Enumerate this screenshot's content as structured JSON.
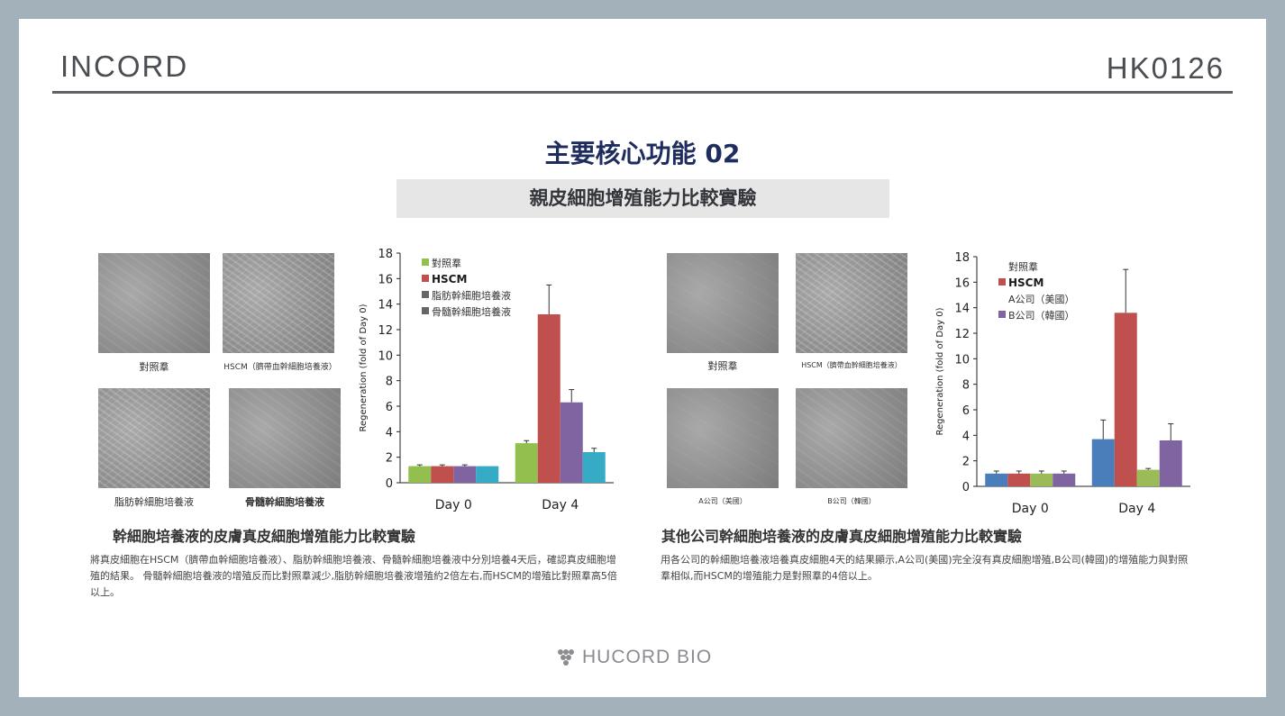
{
  "header": {
    "brand_left": "INCORD",
    "brand_right": "HK0126"
  },
  "title": "主要核心功能 02",
  "subtitle": "親皮細胞增殖能力比較實驗",
  "left_panel": {
    "captions": [
      "對照羣",
      "HSCM（臍帶血幹細胞培養液）",
      "脂肪幹細胞培養液",
      "骨髓幹細胞培養液"
    ],
    "section_title": "幹細胞培養液的皮膚真皮細胞增殖能力比較實驗",
    "body": "將真皮細胞在HSCM（臍帶血幹細胞培養液）、脂肪幹細胞培養液、骨髓幹細胞培養液中分別培養4天后，確認真皮細胞增殖的結果。 骨髓幹細胞培養液的增殖反而比對照羣減少,脂肪幹細胞培養液增殖約2倍左右,而HSCM的增殖比對照羣高5倍以上。"
  },
  "right_panel": {
    "captions": [
      "對照羣",
      "HSCM（臍帶血幹細胞培養液）",
      "A公司（美國）",
      "B公司（韓國）"
    ],
    "section_title": "其他公司幹細胞培養液的皮膚真皮細胞增殖能力比較實驗",
    "body": "用各公司的幹細胞培養液培養真皮細胞4天的結果顯示,A公司(美國)完全沒有真皮細胞增殖,B公司(韓國)的增殖能力與對照羣相似,而HSCM的增殖能力是對照羣的4倍以上。"
  },
  "footer": {
    "logo_text": "HUCORD BIO"
  },
  "chart_data": [
    {
      "type": "bar",
      "categories": [
        "Day 0",
        "Day 4"
      ],
      "ylabel": "Regeneration (fold of Day 0)",
      "xlabel": "",
      "ylim": [
        0,
        18
      ],
      "yticks": [
        0,
        2,
        4,
        6,
        8,
        10,
        12,
        14,
        16,
        18
      ],
      "legend_position": "top-left",
      "series": [
        {
          "name": "對照羣",
          "color": "#92bf4e",
          "values": [
            1.3,
            3.1
          ],
          "errors": [
            0.1,
            0.2
          ]
        },
        {
          "name": "HSCM",
          "color": "#c0504d",
          "values": [
            1.3,
            13.2
          ],
          "errors": [
            0.1,
            2.3
          ]
        },
        {
          "name": "脂肪幹細胞培養液",
          "color": "#8064a2",
          "values": [
            1.3,
            6.3
          ],
          "errors": [
            0.1,
            1.0
          ]
        },
        {
          "name": "骨髓幹細胞培養液",
          "color": "#36abc6",
          "values": [
            1.3,
            2.4
          ],
          "errors": [
            0.0,
            0.3
          ]
        }
      ],
      "legend_colors": [
        "#92bf4e",
        "#c0504d",
        "#666666",
        "#666666"
      ]
    },
    {
      "type": "bar",
      "categories": [
        "Day 0",
        "Day 4"
      ],
      "ylabel": "Regeneration (fold of Day 0)",
      "xlabel": "",
      "ylim": [
        0,
        18
      ],
      "yticks": [
        0,
        2,
        4,
        6,
        8,
        10,
        12,
        14,
        16,
        18
      ],
      "legend_position": "top-left",
      "series": [
        {
          "name": "對照羣",
          "color": "#4a7ebb",
          "values": [
            1.0,
            3.7
          ],
          "errors": [
            0.2,
            1.5
          ]
        },
        {
          "name": "HSCM",
          "color": "#c0504d",
          "values": [
            1.0,
            13.6
          ],
          "errors": [
            0.2,
            3.4
          ]
        },
        {
          "name": "A公司（美國）",
          "color": "#9bbb59",
          "values": [
            1.0,
            1.3
          ],
          "errors": [
            0.2,
            0.1
          ]
        },
        {
          "name": "B公司（韓國）",
          "color": "#8064a2",
          "values": [
            1.0,
            3.6
          ],
          "errors": [
            0.2,
            1.3
          ]
        }
      ],
      "legend_colors": [
        "#ffffff",
        "#c0504d",
        "#ffffff",
        "#8064a2"
      ]
    }
  ]
}
